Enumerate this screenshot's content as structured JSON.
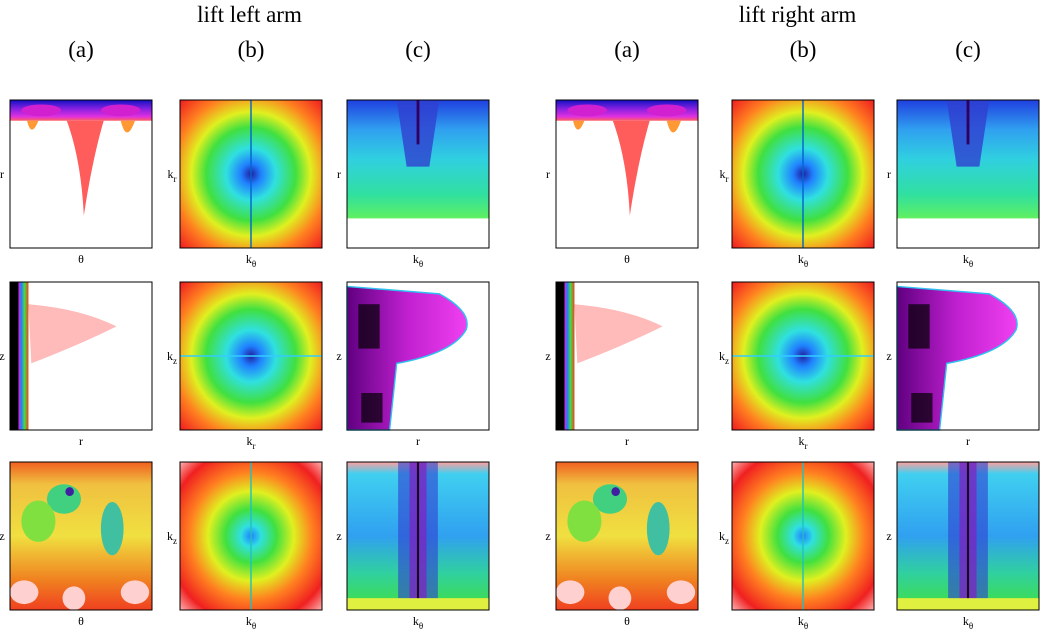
{
  "groups": [
    {
      "title": "lift left arm",
      "columns": [
        "(a)",
        "(b)",
        "(c)"
      ],
      "rows": [
        [
          {
            "ylabel": [
              "r"
            ],
            "xlabel": [
              "θ"
            ]
          },
          {
            "ylabel": [
              "k",
              "r"
            ],
            "xlabel": [
              "k",
              "θ"
            ]
          },
          {
            "ylabel": [
              "r"
            ],
            "xlabel": [
              "k",
              "θ"
            ]
          }
        ],
        [
          {
            "ylabel": [
              "z"
            ],
            "xlabel": [
              "r"
            ]
          },
          {
            "ylabel": [
              "k",
              "z"
            ],
            "xlabel": [
              "k",
              "r"
            ]
          },
          {
            "ylabel": [
              "z"
            ],
            "xlabel": [
              "r"
            ]
          }
        ],
        [
          {
            "ylabel": [
              "z"
            ],
            "xlabel": [
              "θ"
            ]
          },
          {
            "ylabel": [
              "k",
              "z"
            ],
            "xlabel": [
              "k",
              "θ"
            ]
          },
          {
            "ylabel": [
              "z"
            ],
            "xlabel": [
              "k",
              "θ"
            ]
          }
        ]
      ]
    },
    {
      "title": "lift right arm",
      "columns": [
        "(a)",
        "(b)",
        "(c)"
      ],
      "rows": [
        [
          {
            "ylabel": [
              "r"
            ],
            "xlabel": [
              "θ"
            ]
          },
          {
            "ylabel": [
              "k",
              "r"
            ],
            "xlabel": [
              "k",
              "θ"
            ]
          },
          {
            "ylabel": [
              "r"
            ],
            "xlabel": [
              "k",
              "θ"
            ]
          }
        ],
        [
          {
            "ylabel": [
              "z"
            ],
            "xlabel": [
              "r"
            ]
          },
          {
            "ylabel": [
              "k",
              "z"
            ],
            "xlabel": [
              "k",
              "r"
            ]
          },
          {
            "ylabel": [
              "z"
            ],
            "xlabel": [
              "r"
            ]
          }
        ],
        [
          {
            "ylabel": [
              "z"
            ],
            "xlabel": [
              "θ"
            ]
          },
          {
            "ylabel": [
              "k",
              "z"
            ],
            "xlabel": [
              "k",
              "θ"
            ]
          },
          {
            "ylabel": [
              "z"
            ],
            "xlabel": [
              "k",
              "θ"
            ]
          }
        ]
      ]
    }
  ]
}
